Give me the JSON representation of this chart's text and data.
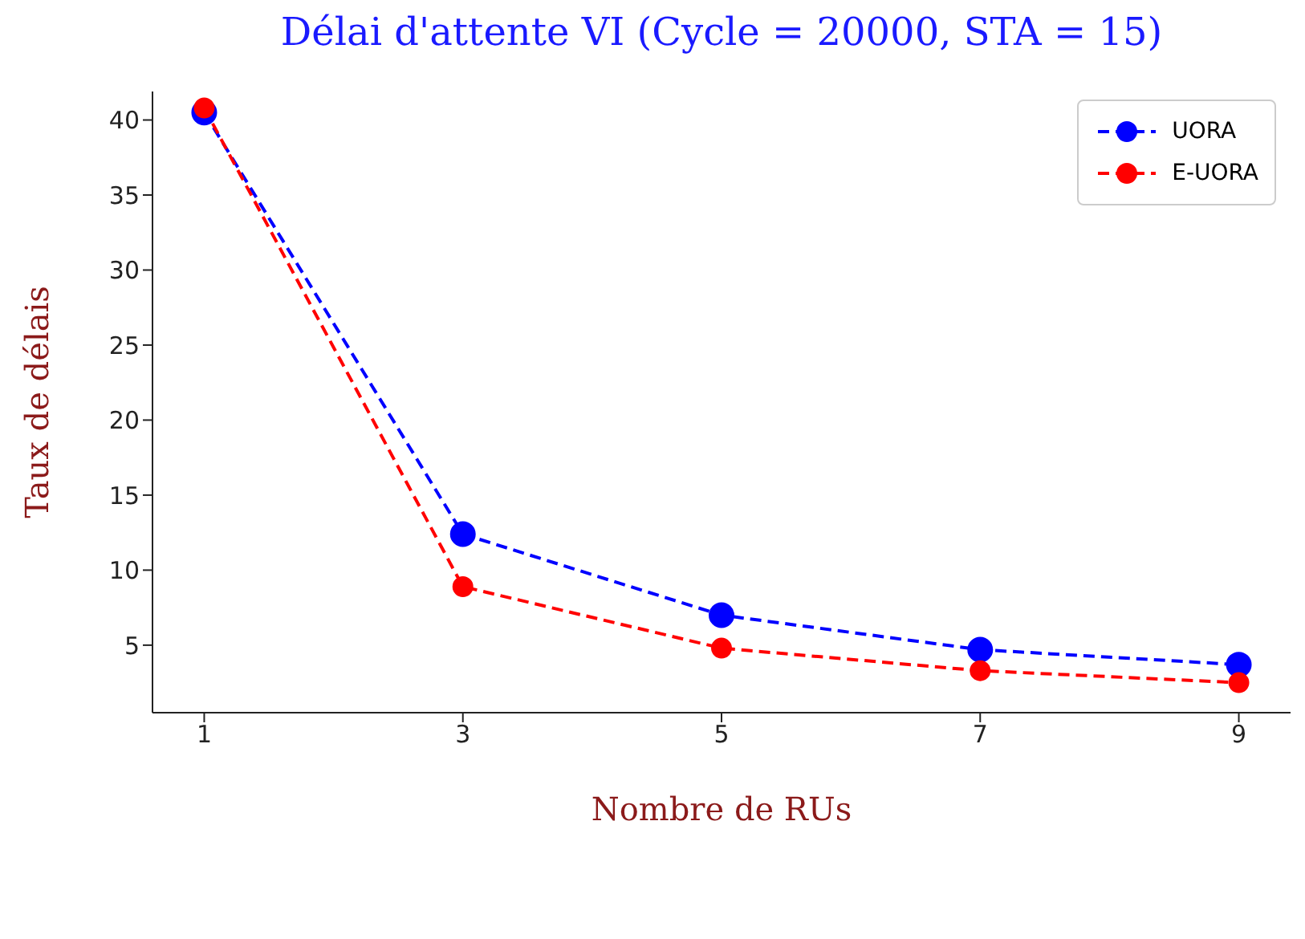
{
  "chart_data": {
    "type": "line",
    "title": "Délai d'attente VI (Cycle = 20000, STA = 15)",
    "xlabel": "Nombre de RUs",
    "ylabel": "Taux de délais",
    "x": [
      1,
      3,
      5,
      7,
      9
    ],
    "series": [
      {
        "name": "UORA",
        "color": "#0000ff",
        "values": [
          40.5,
          12.4,
          7.0,
          4.7,
          3.7
        ]
      },
      {
        "name": "E-UORA",
        "color": "#ff0000",
        "values": [
          40.8,
          8.9,
          4.8,
          3.3,
          2.5
        ]
      }
    ],
    "xlim": [
      0.6,
      9.4
    ],
    "xticks": [
      1,
      3,
      5,
      7,
      9
    ],
    "ylim": [
      0.5,
      41.9
    ],
    "yticks": [
      5,
      10,
      15,
      20,
      25,
      30,
      35,
      40
    ],
    "grid": false,
    "legend": "top right",
    "marker": "circle",
    "line_style": "dashed"
  }
}
